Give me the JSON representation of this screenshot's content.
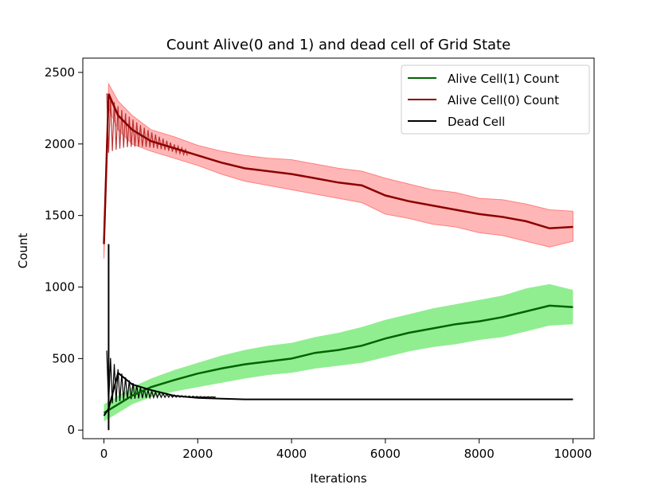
{
  "chart_data": {
    "type": "line",
    "title": "Count Alive(0 and 1) and dead cell of Grid State",
    "xlabel": "Iterations",
    "ylabel": "Count",
    "xlim": [
      -450,
      10450
    ],
    "ylim": [
      -60,
      2600
    ],
    "xticks": [
      0,
      2000,
      4000,
      6000,
      8000,
      10000
    ],
    "xtick_labels": [
      "0",
      "2000",
      "4000",
      "6000",
      "8000",
      "10000"
    ],
    "yticks": [
      0,
      500,
      1000,
      1500,
      2000,
      2500
    ],
    "ytick_labels": [
      "0",
      "500",
      "1000",
      "1500",
      "2000",
      "2500"
    ],
    "legend_position": "top-right",
    "series": [
      {
        "name": "Alive Cell(1) Count",
        "color": "#006400",
        "band_color": "#90ee90",
        "x": [
          0,
          100,
          300,
          600,
          1000,
          1500,
          2000,
          2500,
          3000,
          3500,
          4000,
          4500,
          5000,
          5500,
          6000,
          6500,
          7000,
          7500,
          8000,
          8500,
          9000,
          9500,
          10000
        ],
        "mean": [
          120,
          140,
          180,
          240,
          300,
          350,
          395,
          430,
          460,
          480,
          500,
          540,
          560,
          590,
          640,
          680,
          710,
          740,
          760,
          790,
          830,
          870,
          860
        ],
        "lower": [
          60,
          80,
          120,
          180,
          230,
          270,
          300,
          330,
          360,
          385,
          400,
          430,
          450,
          470,
          510,
          550,
          580,
          600,
          630,
          650,
          690,
          730,
          740
        ],
        "upper": [
          180,
          200,
          240,
          300,
          360,
          420,
          470,
          520,
          560,
          590,
          610,
          650,
          680,
          720,
          770,
          810,
          850,
          880,
          910,
          940,
          990,
          1020,
          980
        ]
      },
      {
        "name": "Alive Cell(0) Count",
        "color": "#8b0000",
        "band_color": "#ffb6b6",
        "x": [
          0,
          100,
          300,
          600,
          1000,
          1500,
          2000,
          2500,
          3000,
          3500,
          4000,
          4500,
          5000,
          5500,
          6000,
          6500,
          7000,
          7500,
          8000,
          8500,
          9000,
          9500,
          10000
        ],
        "mean": [
          1300,
          2350,
          2200,
          2100,
          2020,
          1970,
          1920,
          1870,
          1830,
          1810,
          1790,
          1760,
          1730,
          1710,
          1640,
          1600,
          1570,
          1540,
          1510,
          1490,
          1460,
          1410,
          1420
        ],
        "lower": [
          1200,
          2250,
          2100,
          2000,
          1950,
          1900,
          1850,
          1790,
          1740,
          1710,
          1680,
          1650,
          1620,
          1590,
          1510,
          1480,
          1440,
          1420,
          1380,
          1360,
          1320,
          1280,
          1320
        ],
        "upper": [
          1400,
          2420,
          2300,
          2200,
          2100,
          2050,
          1990,
          1950,
          1920,
          1900,
          1890,
          1860,
          1830,
          1810,
          1760,
          1720,
          1680,
          1660,
          1620,
          1610,
          1580,
          1540,
          1530
        ]
      },
      {
        "name": "Dead Cell",
        "color": "#000000",
        "x": [
          0,
          100,
          300,
          600,
          1000,
          1500,
          2000,
          3000,
          4000,
          5000,
          6000,
          7000,
          8000,
          9000,
          10000
        ],
        "mean": [
          100,
          150,
          400,
          320,
          280,
          240,
          225,
          215,
          215,
          215,
          215,
          215,
          215,
          215,
          215
        ]
      }
    ]
  }
}
